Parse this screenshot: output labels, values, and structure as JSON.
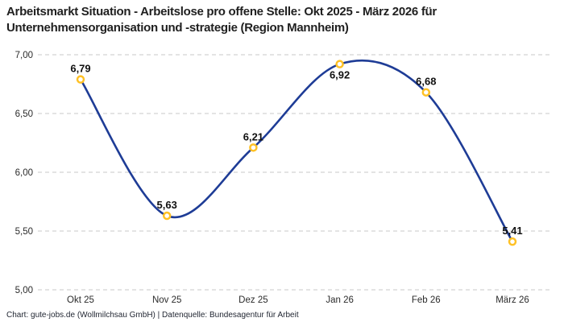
{
  "page": {
    "title": "Arbeitsmarkt Situation - Arbeitslose pro offene Stelle: Okt 2025 - März 2026 für Unternehmensorganisation und -strategie (Region Mannheim)",
    "footer": "Chart: gute-jobs.de (Wollmilchsau GmbH) | Datenquelle: Bundesagentur für Arbeit"
  },
  "chart_data": {
    "type": "line",
    "title": "Arbeitsmarkt Situation - Arbeitslose pro offene Stelle: Okt 2025 - März 2026 für Unternehmensorganisation und -strategie (Region Mannheim)",
    "categories": [
      "Okt 25",
      "Nov 25",
      "Dez 25",
      "Jan 26",
      "Feb 26",
      "März 26"
    ],
    "values": [
      6.79,
      5.63,
      6.21,
      6.92,
      6.68,
      5.41
    ],
    "value_labels": [
      "6,79",
      "5,63",
      "6,21",
      "6,92",
      "6,68",
      "5,41"
    ],
    "label_placements": [
      "above",
      "above",
      "above",
      "below",
      "above",
      "above"
    ],
    "xlabel": "",
    "ylabel": "",
    "ylim": [
      5.0,
      7.0
    ],
    "yticks": [
      5.0,
      5.5,
      6.0,
      6.5,
      7.0
    ],
    "ytick_labels": [
      "5,00",
      "5,50",
      "6,00",
      "6,50",
      "7,00"
    ],
    "grid": "horizontal-dashed",
    "legend": "none",
    "smooth": true,
    "colors": {
      "line": "#1e3c96",
      "marker_ring": "#ffc125",
      "marker_fill": "#ffffff",
      "grid": "#c8c8c8",
      "tick_text": "#2b2b2b",
      "value_label_text": "#111111"
    }
  }
}
